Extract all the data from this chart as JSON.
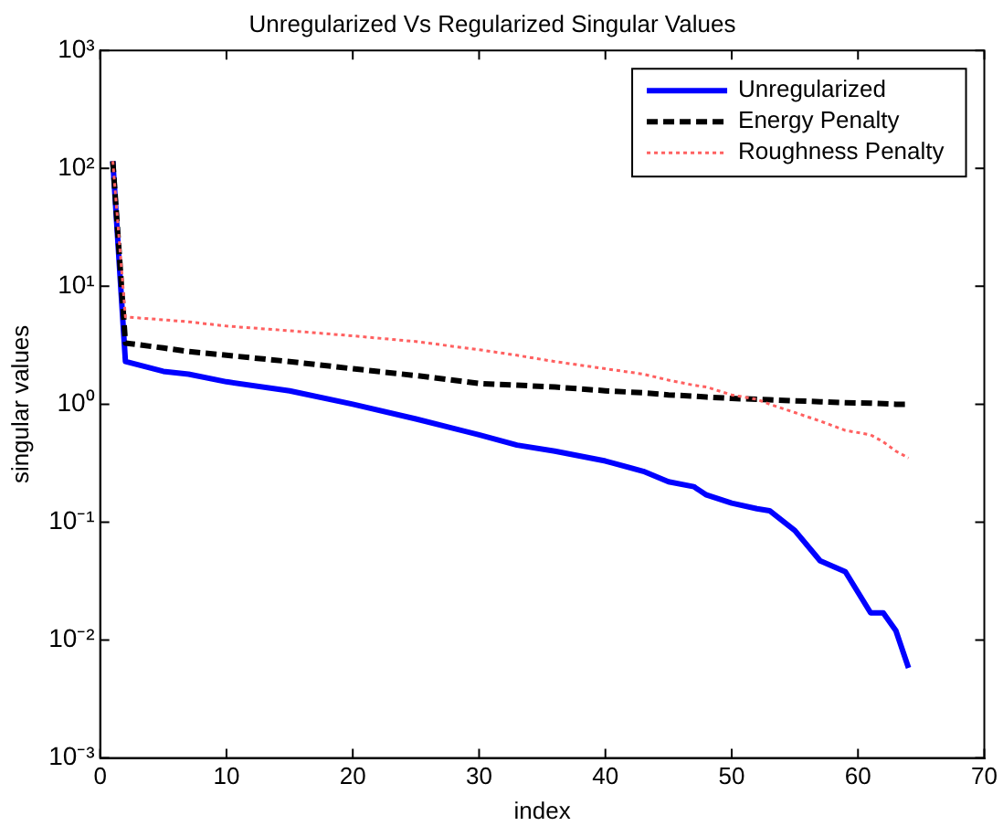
{
  "chart_data": {
    "type": "line",
    "title": "Unregularized Vs Regularized Singular Values",
    "xlabel": "index",
    "ylabel": "singular values",
    "x": [
      1,
      2,
      5,
      7,
      10,
      15,
      20,
      25,
      30,
      33,
      36,
      40,
      43,
      45,
      47,
      48,
      50,
      52,
      53,
      55,
      57,
      59,
      61,
      62,
      63,
      64
    ],
    "series": [
      {
        "name": "Unregularized",
        "color": "#0000ff",
        "line_style": "solid",
        "values": [
          115,
          2.3,
          1.9,
          1.8,
          1.55,
          1.3,
          1.0,
          0.75,
          0.55,
          0.45,
          0.4,
          0.33,
          0.27,
          0.22,
          0.2,
          0.17,
          0.145,
          0.13,
          0.125,
          0.085,
          0.047,
          0.038,
          0.017,
          0.017,
          0.012,
          0.0058
        ]
      },
      {
        "name": "Energy Penalty",
        "color": "#000000",
        "line_style": "dashed",
        "values": [
          115,
          3.3,
          3.0,
          2.8,
          2.6,
          2.3,
          2.0,
          1.75,
          1.5,
          1.45,
          1.4,
          1.3,
          1.25,
          1.2,
          1.17,
          1.15,
          1.12,
          1.1,
          1.09,
          1.07,
          1.05,
          1.03,
          1.02,
          1.01,
          1.0,
          1.0
        ]
      },
      {
        "name": "Roughness Penalty",
        "color": "#ff6060",
        "line_style": "dotted",
        "values": [
          115,
          5.5,
          5.2,
          5.0,
          4.6,
          4.2,
          3.8,
          3.4,
          2.9,
          2.6,
          2.3,
          2.0,
          1.8,
          1.6,
          1.45,
          1.4,
          1.2,
          1.1,
          1.0,
          0.85,
          0.72,
          0.6,
          0.55,
          0.48,
          0.4,
          0.35
        ]
      }
    ],
    "log": "y",
    "xlim": [
      0,
      70
    ],
    "xticks": [
      0,
      10,
      20,
      30,
      40,
      50,
      60,
      70
    ],
    "ylim": [
      0.001,
      1000
    ],
    "yticks": [
      {
        "value": 0.001,
        "label": "10⁻³"
      },
      {
        "value": 0.01,
        "label": "10⁻²"
      },
      {
        "value": 0.1,
        "label": "10⁻¹"
      },
      {
        "value": 1,
        "label": "10⁰"
      },
      {
        "value": 10,
        "label": "10¹"
      },
      {
        "value": 100,
        "label": "10²"
      },
      {
        "value": 1000,
        "label": "10³"
      }
    ],
    "grid": false,
    "legend": "top right"
  }
}
